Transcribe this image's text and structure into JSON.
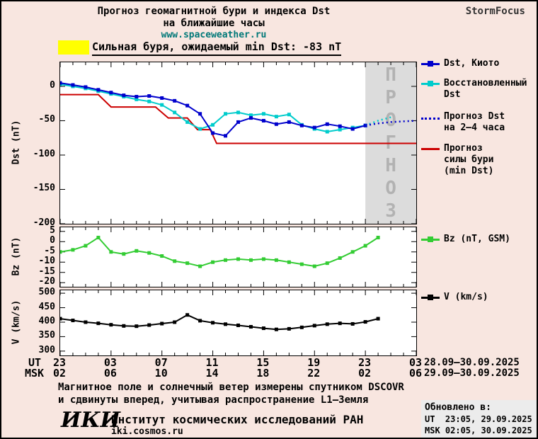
{
  "colors": {
    "background": "#f8e6e0",
    "panel_bg": "#ffffff"
  },
  "header": {
    "title_line1": "Прогноз геомагнитной бури и индекса Dst",
    "title_line2": "на ближайшие часы",
    "website": "www.spaceweather.ru",
    "brand": "StormFocus"
  },
  "alert": {
    "highlight_color": "#ffff00",
    "text": "Сильная буря, ожидаемый min Dst: -83 nT"
  },
  "forecast_region": {
    "label": "ПРОГНОЗ",
    "fill": "#dcdcdc",
    "text_color": "#b2b2b2",
    "start_hour": 24
  },
  "legend_main": {
    "dst_kyoto": {
      "label": "Dst, Киото",
      "color": "#0000cc"
    },
    "restored": {
      "label": "Восстановленный\nDst",
      "color": "#00cccc"
    },
    "forecast_dst": {
      "label": "Прогноз Dst\nна 2—4 часа",
      "color": "#0000cc"
    },
    "forecast_storm": {
      "label": "Прогноз\nсилы бури\n(min Dst)",
      "color": "#cc0000"
    }
  },
  "legend_bz": {
    "label": "Bz (nT, GSM)",
    "color": "#33cc33"
  },
  "legend_v": {
    "label": "V (km/s)",
    "color": "#000000"
  },
  "xaxis": {
    "ut_label": "UT",
    "msk_label": "MSK",
    "hours_range": [
      0,
      28
    ],
    "tick_hours": [
      0,
      4,
      8,
      12,
      16,
      20,
      24,
      28
    ],
    "ut_ticks": [
      "23",
      "03",
      "07",
      "11",
      "15",
      "19",
      "23",
      "03"
    ],
    "msk_ticks": [
      "02",
      "06",
      "10",
      "14",
      "18",
      "22",
      "02",
      "06"
    ],
    "ut_date": "28.09–30.09.2025",
    "msk_date": "29.09–30.09.2025"
  },
  "chart_data": [
    {
      "id": "dst",
      "type": "line",
      "title": "Прогноз геомагнитной бури и индекса Dst на ближайшие часы",
      "ylabel": "Dst (nT)",
      "ylim": [
        -200,
        35
      ],
      "yticks": [
        0,
        -50,
        -100,
        -150,
        -200
      ],
      "forecast_region_start_hour": 24,
      "series": [
        {
          "name": "Прогноз силы бури (min Dst)",
          "color": "#cc0000",
          "x": [
            0,
            3,
            4,
            7.5,
            8.5,
            10,
            10.8,
            11.8,
            12.3,
            28
          ],
          "y": [
            -12,
            -12,
            -30,
            -30,
            -46,
            -46,
            -63,
            -63,
            -83,
            -83
          ]
        },
        {
          "name": "Восстановленный Dst",
          "color": "#00cccc",
          "marker": "square",
          "x": [
            0,
            1,
            2,
            3,
            4,
            5,
            6,
            7,
            8,
            9,
            10,
            11,
            12,
            13,
            14,
            15,
            16,
            17,
            18,
            19,
            20,
            21,
            22,
            23,
            24
          ],
          "y": [
            3,
            0,
            -3,
            -7,
            -11,
            -15,
            -19,
            -22,
            -27,
            -38,
            -52,
            -62,
            -56,
            -40,
            -38,
            -42,
            -40,
            -44,
            -41,
            -56,
            -62,
            -66,
            -63,
            -60,
            -57
          ]
        },
        {
          "name": "Dst, Киото",
          "color": "#0000cc",
          "marker": "square",
          "x": [
            0,
            1,
            2,
            3,
            4,
            5,
            6,
            7,
            8,
            9,
            10,
            11,
            12,
            13,
            14,
            15,
            16,
            17,
            18,
            19,
            20,
            21,
            22,
            23,
            24
          ],
          "y": [
            5,
            2,
            -1,
            -5,
            -9,
            -13,
            -15,
            -14,
            -17,
            -21,
            -28,
            -40,
            -68,
            -72,
            -52,
            -46,
            -50,
            -55,
            -52,
            -57,
            -60,
            -55,
            -58,
            -62,
            -57
          ]
        },
        {
          "name": "Прогноз восстановленного Dst",
          "color": "#00cccc",
          "dash": "dotted",
          "x": [
            24,
            25,
            26
          ],
          "y": [
            -57,
            -50,
            -45
          ]
        },
        {
          "name": "Прогноз Dst на 2—4 часа",
          "color": "#0000cc",
          "dash": "dotted",
          "x": [
            24,
            25,
            26,
            27,
            28
          ],
          "y": [
            -57,
            -54,
            -52,
            -51,
            -50
          ]
        }
      ]
    },
    {
      "id": "bz",
      "type": "line",
      "ylabel": "Bz (nT)",
      "ylim": [
        -22,
        7
      ],
      "yticks": [
        5,
        0,
        -5,
        -10,
        -15,
        -20
      ],
      "series": [
        {
          "name": "Bz (nT, GSM)",
          "color": "#33cc33",
          "marker": "square",
          "x": [
            0,
            1,
            2,
            3,
            4,
            5,
            6,
            7,
            8,
            9,
            10,
            11,
            12,
            13,
            14,
            15,
            16,
            17,
            18,
            19,
            20,
            21,
            22,
            23,
            24,
            25
          ],
          "y": [
            -5,
            -4,
            -2,
            2,
            -5,
            -6,
            -4.5,
            -5.5,
            -7,
            -9.5,
            -10.5,
            -12,
            -10,
            -9,
            -8.5,
            -9,
            -8.5,
            -9,
            -10,
            -11,
            -12,
            -10.5,
            -8,
            -5,
            -2,
            2
          ]
        }
      ]
    },
    {
      "id": "v",
      "type": "line",
      "ylabel": "V (km/s)",
      "ylim": [
        285,
        510
      ],
      "yticks": [
        500,
        450,
        400,
        350,
        300
      ],
      "series": [
        {
          "name": "V (km/s)",
          "color": "#000000",
          "marker": "square",
          "x": [
            0,
            1,
            2,
            3,
            4,
            5,
            6,
            7,
            8,
            9,
            10,
            11,
            12,
            13,
            14,
            15,
            16,
            17,
            18,
            19,
            20,
            21,
            22,
            23,
            24,
            25
          ],
          "y": [
            412,
            406,
            400,
            396,
            391,
            387,
            386,
            390,
            395,
            400,
            425,
            405,
            398,
            393,
            389,
            384,
            379,
            375,
            377,
            382,
            388,
            393,
            396,
            394,
            401,
            412
          ]
        }
      ]
    }
  ],
  "caption": {
    "line1": "Магнитное поле и солнечный ветер измерены спутником DSCOVR",
    "line2": "и сдвинуты вперед, учитывая распространение L1—Земля"
  },
  "footer": {
    "logo": "ИКИ",
    "institute": "Институт космических исследований РАН",
    "website": "iki.cosmos.ru",
    "updated_title": "Обновлено в:",
    "updated_ut": "UT  23:05, 29.09.2025",
    "updated_msk": "MSK 02:05, 30.09.2025"
  }
}
